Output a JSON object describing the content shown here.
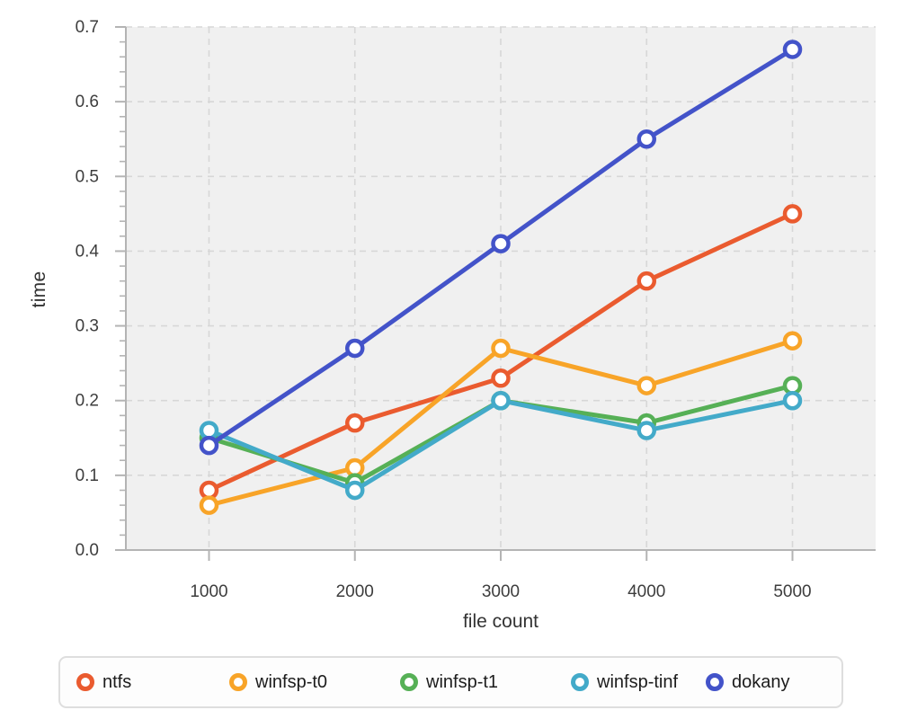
{
  "style": {
    "page_bg": "#ffffff",
    "plot_bg": "#f0f0f0",
    "grid_color": "#d7d7d7",
    "spine_color": "#b4b4b4",
    "tick_label_color": "#3d3d3d",
    "axis_title_color": "#333333",
    "legend_border": "#dedede",
    "legend_bg": "#fdfdfd",
    "legend_text_color": "#1c1c1c"
  },
  "chart_data": {
    "type": "line",
    "title": "",
    "xlabel": "file count",
    "ylabel": "time",
    "x": [
      1000,
      2000,
      3000,
      4000,
      5000
    ],
    "xtick_labels": [
      "1000",
      "2000",
      "3000",
      "4000",
      "5000"
    ],
    "ytick_values": [
      0.0,
      0.1,
      0.2,
      0.3,
      0.4,
      0.5,
      0.6,
      0.7
    ],
    "ytick_labels": [
      "0.0",
      "0.1",
      "0.2",
      "0.3",
      "0.4",
      "0.5",
      "0.6",
      "0.7"
    ],
    "y_minor_step": 0.02,
    "xlim": [
      430,
      5570
    ],
    "ylim": [
      0,
      0.7
    ],
    "grid": "dashed",
    "legend_position": "bottom",
    "marker": "open-circle",
    "series": [
      {
        "name": "ntfs",
        "color": "#ea5b2f",
        "values": [
          0.08,
          0.17,
          0.23,
          0.36,
          0.45
        ]
      },
      {
        "name": "winfsp-t0",
        "color": "#f8a428",
        "values": [
          0.06,
          0.11,
          0.27,
          0.22,
          0.28
        ]
      },
      {
        "name": "winfsp-t1",
        "color": "#56b056",
        "values": [
          0.15,
          0.09,
          0.2,
          0.17,
          0.22
        ]
      },
      {
        "name": "winfsp-tinf",
        "color": "#43aac9",
        "values": [
          0.16,
          0.08,
          0.2,
          0.16,
          0.2
        ]
      },
      {
        "name": "dokany",
        "color": "#4353c9",
        "values": [
          0.14,
          0.27,
          0.41,
          0.55,
          0.67
        ]
      }
    ]
  }
}
